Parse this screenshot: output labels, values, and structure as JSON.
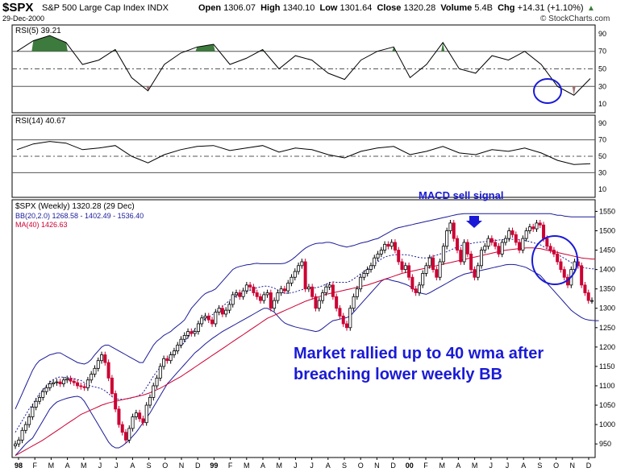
{
  "header": {
    "symbol": "$SPX",
    "name": "S&P 500 Large Cap Index",
    "exchange": "INDX",
    "date": "29-Dec-2000",
    "open_label": "Open",
    "open": "1306.07",
    "high_label": "High",
    "high": "1340.10",
    "low_label": "Low",
    "low": "1301.64",
    "close_label": "Close",
    "close": "1320.28",
    "volume_label": "Volume",
    "volume": "5.4B",
    "chg_label": "Chg",
    "chg": "+14.31 (+1.10%)",
    "credit": "© StockCharts.com"
  },
  "colors": {
    "up": "#000000",
    "down": "#cc0033",
    "bb": "#1a1a99",
    "ma": "#cc0033",
    "rsi_over": "#3d7a3d",
    "rsi_under": "#a07070",
    "annotation": "#1a1ad6"
  },
  "chart_data": [
    {
      "type": "line",
      "title": "RSI(5) 39.21",
      "yticks": [
        10,
        30,
        50,
        70,
        90
      ],
      "ylim": [
        0,
        100
      ],
      "reference_lines": [
        30,
        50,
        70
      ],
      "x": [
        "98-01",
        "98-02",
        "98-03",
        "98-04",
        "98-05",
        "98-06",
        "98-07",
        "98-08",
        "98-09",
        "98-10",
        "98-11",
        "98-12",
        "99-01",
        "99-02",
        "99-03",
        "99-04",
        "99-05",
        "99-06",
        "99-07",
        "99-08",
        "99-09",
        "99-10",
        "99-11",
        "99-12",
        "00-01",
        "00-02",
        "00-03",
        "00-04",
        "00-05",
        "00-06",
        "00-07",
        "00-08",
        "00-09",
        "00-10",
        "00-11",
        "00-12"
      ],
      "series": [
        {
          "values": [
            70,
            82,
            88,
            80,
            55,
            60,
            72,
            40,
            25,
            55,
            68,
            75,
            78,
            55,
            62,
            72,
            50,
            65,
            60,
            45,
            38,
            60,
            70,
            75,
            40,
            55,
            80,
            50,
            45,
            65,
            60,
            70,
            55,
            30,
            20,
            39
          ]
        }
      ]
    },
    {
      "type": "line",
      "title": "RSI(14) 40.67",
      "yticks": [
        10,
        30,
        50,
        70,
        90
      ],
      "ylim": [
        0,
        100
      ],
      "reference_lines": [
        30,
        50,
        70
      ],
      "x": [
        "98-01",
        "98-02",
        "98-03",
        "98-04",
        "98-05",
        "98-06",
        "98-07",
        "98-08",
        "98-09",
        "98-10",
        "98-11",
        "98-12",
        "99-01",
        "99-02",
        "99-03",
        "99-04",
        "99-05",
        "99-06",
        "99-07",
        "99-08",
        "99-09",
        "99-10",
        "99-11",
        "99-12",
        "00-01",
        "00-02",
        "00-03",
        "00-04",
        "00-05",
        "00-06",
        "00-07",
        "00-08",
        "00-09",
        "00-10",
        "00-11",
        "00-12"
      ],
      "series": [
        {
          "values": [
            58,
            65,
            68,
            66,
            58,
            60,
            63,
            50,
            42,
            52,
            58,
            62,
            63,
            57,
            60,
            63,
            55,
            60,
            58,
            52,
            48,
            56,
            60,
            62,
            52,
            56,
            62,
            54,
            52,
            58,
            56,
            60,
            54,
            45,
            40,
            41
          ]
        }
      ]
    },
    {
      "type": "candlestick",
      "title": "$SPX (Weekly) 1320.28 (29 Dec)",
      "legend": [
        "BB(20,2.0) 1268.58 - 1402.49 - 1536.40",
        "MA(40) 1426.63"
      ],
      "yticks": [
        950,
        1000,
        1050,
        1100,
        1150,
        1200,
        1250,
        1300,
        1350,
        1400,
        1450,
        1500,
        1550
      ],
      "ylim": [
        915,
        1580
      ],
      "xticks": [
        "98",
        "F",
        "M",
        "A",
        "M",
        "J",
        "J",
        "A",
        "S",
        "O",
        "N",
        "D",
        "99",
        "F",
        "M",
        "A",
        "M",
        "J",
        "J",
        "A",
        "S",
        "O",
        "N",
        "D",
        "00",
        "F",
        "M",
        "A",
        "M",
        "J",
        "J",
        "A",
        "S",
        "O",
        "N",
        "D"
      ],
      "annotations": [
        "MACD sell signal",
        "Market rallied up to 40 wma after",
        "breaching lower weekly BB"
      ],
      "closes": [
        950,
        960,
        985,
        1000,
        1020,
        1045,
        1060,
        1070,
        1085,
        1095,
        1105,
        1108,
        1110,
        1105,
        1115,
        1118,
        1112,
        1108,
        1100,
        1098,
        1095,
        1115,
        1130,
        1145,
        1165,
        1180,
        1160,
        1120,
        1080,
        1040,
        1000,
        980,
        960,
        990,
        1020,
        1030,
        1015,
        1005,
        1050,
        1070,
        1100,
        1120,
        1150,
        1170,
        1165,
        1180,
        1190,
        1205,
        1220,
        1230,
        1240,
        1235,
        1240,
        1260,
        1275,
        1280,
        1270,
        1260,
        1290,
        1300,
        1285,
        1295,
        1310,
        1335,
        1340,
        1330,
        1345,
        1360,
        1355,
        1340,
        1330,
        1320,
        1335,
        1340,
        1300,
        1320,
        1340,
        1350,
        1345,
        1365,
        1380,
        1395,
        1410,
        1420,
        1350,
        1355,
        1330,
        1300,
        1320,
        1340,
        1355,
        1360,
        1330,
        1300,
        1280,
        1260,
        1250,
        1300,
        1330,
        1350,
        1380,
        1390,
        1400,
        1410,
        1430,
        1440,
        1450,
        1465,
        1460,
        1470,
        1450,
        1420,
        1400,
        1410,
        1380,
        1350,
        1340,
        1360,
        1390,
        1410,
        1430,
        1400,
        1380,
        1420,
        1460,
        1500,
        1520,
        1480,
        1450,
        1420,
        1470,
        1440,
        1400,
        1380,
        1410,
        1450,
        1460,
        1480,
        1470,
        1460,
        1440,
        1470,
        1480,
        1500,
        1490,
        1470,
        1450,
        1480,
        1500,
        1510,
        1505,
        1520,
        1515,
        1480,
        1460,
        1450,
        1440,
        1420,
        1400,
        1380,
        1360,
        1400,
        1420,
        1410,
        1360,
        1340,
        1320,
        1320
      ],
      "bb_upper": [
        1040,
        1060,
        1080,
        1100,
        1120,
        1140,
        1155,
        1165,
        1170,
        1175,
        1180,
        1182,
        1185,
        1185,
        1180,
        1175,
        1170,
        1165,
        1160,
        1158,
        1156,
        1160,
        1168,
        1180,
        1190,
        1200,
        1205,
        1205,
        1200,
        1195,
        1190,
        1185,
        1180,
        1175,
        1170,
        1165,
        1160,
        1160,
        1175,
        1190,
        1205,
        1215,
        1222,
        1230,
        1235,
        1240,
        1248,
        1255,
        1262,
        1270,
        1285,
        1300,
        1310,
        1320,
        1330,
        1338,
        1342,
        1345,
        1350,
        1360,
        1370,
        1380,
        1390,
        1400,
        1405,
        1408,
        1410,
        1412,
        1413,
        1415,
        1416,
        1415,
        1415,
        1415,
        1415,
        1415,
        1415,
        1415,
        1416,
        1420,
        1425,
        1432,
        1440,
        1448,
        1455,
        1460,
        1464,
        1467,
        1468,
        1468,
        1470,
        1470,
        1468,
        1465,
        1462,
        1460,
        1458,
        1460,
        1462,
        1465,
        1468,
        1470,
        1472,
        1475,
        1478,
        1480,
        1485,
        1490,
        1495,
        1500,
        1505,
        1508,
        1510,
        1512,
        1514,
        1516,
        1518,
        1520,
        1522,
        1524,
        1526,
        1528,
        1530,
        1532,
        1534,
        1536,
        1538,
        1540,
        1542,
        1543,
        1544,
        1544,
        1544,
        1544,
        1544,
        1544,
        1544,
        1544,
        1544,
        1544,
        1544,
        1544,
        1544,
        1544,
        1544,
        1544,
        1544,
        1544,
        1544,
        1544,
        1544,
        1544,
        1544,
        1544,
        1544,
        1544,
        1542,
        1540,
        1540,
        1538,
        1537,
        1536,
        1536,
        1536,
        1536,
        1536,
        1536,
        1536,
        1536
      ],
      "bb_lower": [
        920,
        930,
        940,
        950,
        958,
        965,
        980,
        995,
        1010,
        1025,
        1040,
        1050,
        1058,
        1062,
        1065,
        1068,
        1070,
        1072,
        1073,
        1070,
        1060,
        1045,
        1030,
        1015,
        1000,
        985,
        970,
        955,
        945,
        940,
        940,
        945,
        952,
        960,
        970,
        980,
        992,
        1005,
        1018,
        1030,
        1045,
        1060,
        1075,
        1090,
        1105,
        1115,
        1125,
        1135,
        1145,
        1155,
        1165,
        1175,
        1185,
        1192,
        1200,
        1208,
        1215,
        1222,
        1228,
        1234,
        1240,
        1245,
        1250,
        1255,
        1260,
        1265,
        1270,
        1275,
        1280,
        1285,
        1290,
        1295,
        1300,
        1300,
        1295,
        1290,
        1280,
        1270,
        1262,
        1258,
        1255,
        1252,
        1250,
        1248,
        1246,
        1244,
        1242,
        1240,
        1242,
        1248,
        1255,
        1262,
        1268,
        1270,
        1272,
        1274,
        1276,
        1280,
        1290,
        1300,
        1310,
        1320,
        1330,
        1340,
        1350,
        1360,
        1370,
        1375,
        1375,
        1372,
        1370,
        1368,
        1365,
        1362,
        1358,
        1352,
        1345,
        1340,
        1338,
        1336,
        1340,
        1345,
        1350,
        1355,
        1360,
        1365,
        1370,
        1375,
        1380,
        1384,
        1388,
        1390,
        1392,
        1394,
        1396,
        1398,
        1400,
        1402,
        1404,
        1406,
        1408,
        1410,
        1412,
        1413,
        1413,
        1412,
        1410,
        1408,
        1405,
        1400,
        1395,
        1390,
        1385,
        1375,
        1365,
        1355,
        1345,
        1335,
        1325,
        1315,
        1305,
        1295,
        1288,
        1282,
        1276,
        1272,
        1270,
        1269,
        1268,
        1268
      ],
      "bb_mid": [
        980,
        995,
        1010,
        1025,
        1040,
        1052,
        1067,
        1080,
        1090,
        1100,
        1110,
        1116,
        1121,
        1123,
        1122,
        1121,
        1120,
        1118,
        1116,
        1114,
        1108,
        1102,
        1099,
        1097,
        1095,
        1092,
        1087,
        1080,
        1072,
        1067,
        1065,
        1065,
        1066,
        1067,
        1070,
        1072,
        1076,
        1082,
        1096,
        1110,
        1125,
        1137,
        1148,
        1160,
        1170,
        1178,
        1186,
        1195,
        1203,
        1212,
        1225,
        1237,
        1247,
        1256,
        1265,
        1273,
        1278,
        1283,
        1289,
        1297,
        1305,
        1312,
        1320,
        1327,
        1332,
        1336,
        1340,
        1343,
        1346,
        1350,
        1353,
        1355,
        1357,
        1357,
        1355,
        1352,
        1347,
        1342,
        1339,
        1339,
        1340,
        1342,
        1345,
        1348,
        1350,
        1352,
        1353,
        1353,
        1355,
        1358,
        1362,
        1366,
        1368,
        1367,
        1367,
        1367,
        1367,
        1370,
        1376,
        1382,
        1389,
        1395,
        1401,
        1407,
        1414,
        1420,
        1427,
        1432,
        1435,
        1437,
        1438,
        1438,
        1438,
        1438,
        1437,
        1435,
        1433,
        1431,
        1430,
        1430,
        1431,
        1434,
        1437,
        1440,
        1443,
        1446,
        1450,
        1454,
        1458,
        1462,
        1464,
        1466,
        1467,
        1469,
        1470,
        1471,
        1472,
        1473,
        1474,
        1475,
        1476,
        1477,
        1478,
        1478,
        1478,
        1478,
        1477,
        1476,
        1474,
        1472,
        1469,
        1467,
        1464,
        1459,
        1454,
        1449,
        1444,
        1439,
        1434,
        1429,
        1424,
        1418,
        1413,
        1409,
        1406,
        1404,
        1403,
        1402,
        1402
      ],
      "ma40": [
        920,
        925,
        930,
        935,
        940,
        945,
        950,
        955,
        960,
        966,
        972,
        978,
        984,
        990,
        996,
        1002,
        1008,
        1014,
        1020,
        1026,
        1030,
        1034,
        1038,
        1042,
        1046,
        1050,
        1053,
        1056,
        1058,
        1060,
        1062,
        1064,
        1066,
        1068,
        1070,
        1072,
        1074,
        1076,
        1079,
        1082,
        1086,
        1090,
        1094,
        1099,
        1104,
        1109,
        1114,
        1119,
        1124,
        1130,
        1136,
        1142,
        1148,
        1154,
        1160,
        1166,
        1172,
        1178,
        1184,
        1190,
        1196,
        1202,
        1208,
        1214,
        1220,
        1226,
        1232,
        1238,
        1244,
        1250,
        1256,
        1262,
        1268,
        1274,
        1278,
        1282,
        1286,
        1290,
        1294,
        1298,
        1302,
        1306,
        1310,
        1314,
        1318,
        1321,
        1324,
        1327,
        1330,
        1333,
        1336,
        1338,
        1340,
        1342,
        1344,
        1346,
        1348,
        1350,
        1352,
        1354,
        1356,
        1358,
        1360,
        1363,
        1366,
        1369,
        1372,
        1375,
        1378,
        1381,
        1384,
        1387,
        1390,
        1392,
        1394,
        1396,
        1398,
        1400,
        1402,
        1404,
        1406,
        1408,
        1410,
        1412,
        1414,
        1416,
        1418,
        1420,
        1422,
        1424,
        1426,
        1428,
        1430,
        1432,
        1434,
        1436,
        1438,
        1440,
        1442,
        1444,
        1446,
        1448,
        1450,
        1451,
        1452,
        1453,
        1454,
        1455,
        1456,
        1456,
        1456,
        1455,
        1454,
        1452,
        1450,
        1448,
        1446,
        1444,
        1442,
        1440,
        1438,
        1436,
        1434,
        1432,
        1430,
        1429,
        1428,
        1427,
        1427
      ]
    }
  ]
}
